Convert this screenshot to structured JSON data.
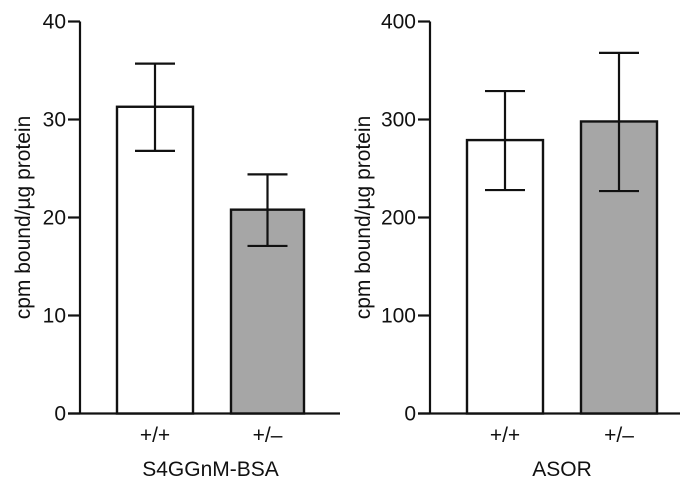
{
  "chart_data": [
    {
      "type": "bar",
      "title": "",
      "xlabel": "S4GGnM-BSA",
      "ylabel": "cpm bound/µg protein",
      "ylim": [
        0,
        40
      ],
      "yticks": [
        0,
        10,
        20,
        30,
        40
      ],
      "categories": [
        "+/+",
        "+/–"
      ],
      "values": [
        31.3,
        20.8
      ],
      "error_upper": [
        35.7,
        24.4
      ],
      "error_lower": [
        26.8,
        17.1
      ],
      "colors": [
        "#ffffff",
        "#a6a6a6"
      ],
      "grid": false
    },
    {
      "type": "bar",
      "title": "",
      "xlabel": "ASOR",
      "ylabel": "cpm bound/µg protein",
      "ylim": [
        0,
        400
      ],
      "yticks": [
        0,
        100,
        200,
        300,
        400
      ],
      "categories": [
        "+/+",
        "+/–"
      ],
      "values": [
        279,
        298
      ],
      "error_upper": [
        329,
        368
      ],
      "error_lower": [
        228,
        227
      ],
      "colors": [
        "#ffffff",
        "#a6a6a6"
      ],
      "grid": false
    }
  ]
}
